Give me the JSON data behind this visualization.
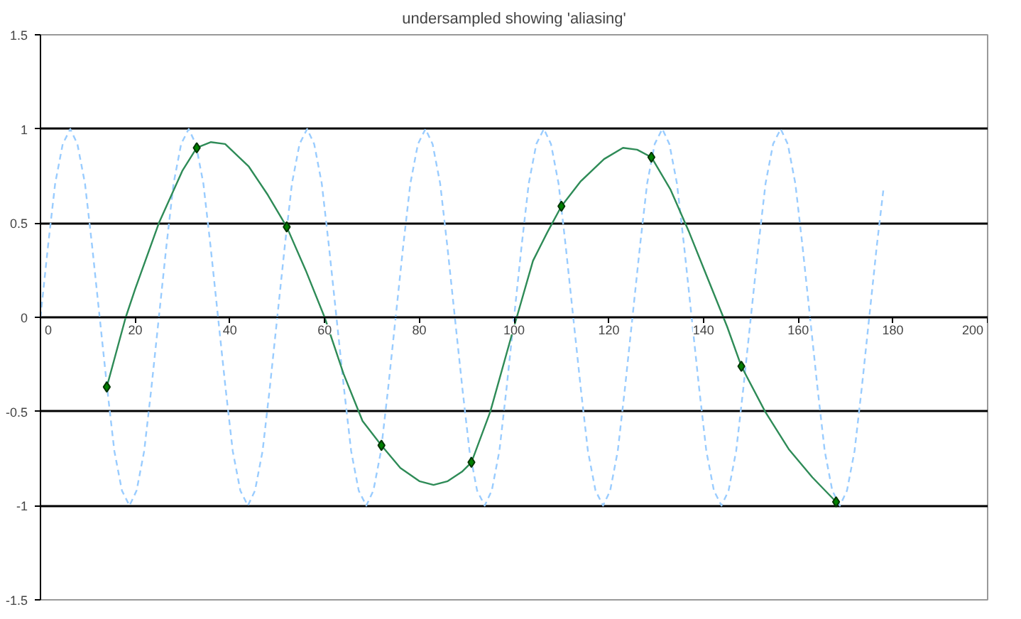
{
  "chart_data": {
    "type": "line",
    "title": "undersampled showing 'aliasing'",
    "xlim": [
      0,
      200
    ],
    "xticks": [
      0,
      20,
      40,
      60,
      80,
      100,
      120,
      140,
      160,
      180,
      200
    ],
    "ylim": [
      -1.5,
      1.5
    ],
    "yticks": [
      -1.5,
      -1,
      -0.5,
      0,
      0.5,
      1,
      1.5
    ],
    "grid": "y",
    "series": [
      {
        "color": "#99ccff",
        "line_style": "dashed",
        "marker": "none",
        "x": [
          0,
          1.6,
          3.1,
          4.7,
          6.3,
          7.8,
          9.4,
          10.9,
          12.5,
          14.1,
          15.6,
          17.2,
          18.8,
          20.3,
          21.9,
          23.4,
          25,
          26.6,
          28.1,
          29.7,
          31.3,
          32.8,
          34.4,
          35.9,
          37.5,
          39.1,
          40.6,
          42.2,
          43.8,
          45.3,
          46.9,
          48.4,
          50,
          51.6,
          53.1,
          54.7,
          56.3,
          57.8,
          59.4,
          60.9,
          62.5,
          64.1,
          65.6,
          67.2,
          68.8,
          70.3,
          71.9,
          73.4,
          75,
          76.6,
          78.1,
          79.7,
          81.3,
          82.8,
          84.4,
          85.9,
          87.5,
          89.1,
          90.6,
          92.2,
          93.8,
          95.3,
          96.9,
          98.4,
          100,
          101.6,
          103.1,
          104.7,
          106.3,
          107.8,
          109.4,
          110.9,
          112.5,
          114.1,
          115.6,
          117.2,
          118.8,
          120.3,
          121.9,
          123.4,
          125,
          126.6,
          128.1,
          129.7,
          131.3,
          132.8,
          134.4,
          135.9,
          137.5,
          139.1,
          140.6,
          142.2,
          143.8,
          145.3,
          146.9,
          148.4,
          150,
          151.6,
          153.1,
          154.7,
          156.3,
          157.8,
          159.4,
          160.9,
          162.5,
          164.1,
          165.6,
          167.2,
          168.8,
          170.3,
          171.9,
          173.4,
          175,
          176.6,
          178
        ],
        "values": [
          0,
          0.38,
          0.71,
          0.92,
          1,
          0.92,
          0.71,
          0.38,
          0,
          -0.38,
          -0.71,
          -0.92,
          -1,
          -0.92,
          -0.71,
          -0.38,
          0,
          0.38,
          0.71,
          0.92,
          1,
          0.92,
          0.71,
          0.38,
          0,
          -0.38,
          -0.71,
          -0.92,
          -1,
          -0.92,
          -0.71,
          -0.38,
          0,
          0.38,
          0.71,
          0.92,
          1,
          0.92,
          0.71,
          0.38,
          0,
          -0.38,
          -0.71,
          -0.92,
          -1,
          -0.92,
          -0.71,
          -0.38,
          0,
          0.38,
          0.71,
          0.92,
          1,
          0.92,
          0.71,
          0.38,
          0,
          -0.38,
          -0.71,
          -0.92,
          -1,
          -0.92,
          -0.71,
          -0.38,
          0,
          0.38,
          0.71,
          0.92,
          1,
          0.92,
          0.71,
          0.38,
          0,
          -0.38,
          -0.71,
          -0.92,
          -1,
          -0.92,
          -0.71,
          -0.38,
          0,
          0.38,
          0.71,
          0.92,
          1,
          0.92,
          0.71,
          0.38,
          0,
          -0.38,
          -0.71,
          -0.92,
          -1,
          -0.92,
          -0.71,
          -0.38,
          0,
          0.38,
          0.71,
          0.92,
          1,
          0.92,
          0.71,
          0.38,
          0,
          -0.38,
          -0.71,
          -0.92,
          -1,
          -0.92,
          -0.71,
          -0.38,
          0,
          0.38,
          0.68
        ]
      },
      {
        "color": "#2e8b57",
        "line_style": "solid",
        "x": [
          14,
          18,
          20,
          25,
          30,
          33,
          36,
          39,
          44,
          48,
          52,
          56,
          60,
          64,
          68,
          72,
          76,
          80,
          83,
          86,
          89,
          91,
          95,
          100,
          104,
          107,
          110,
          114,
          119,
          123,
          126,
          129,
          133,
          137,
          141,
          145,
          148,
          153,
          158,
          163,
          168
        ],
        "values": [
          -0.37,
          0,
          0.15,
          0.5,
          0.78,
          0.9,
          0.93,
          0.92,
          0.8,
          0.65,
          0.48,
          0.25,
          0,
          -0.3,
          -0.55,
          -0.68,
          -0.8,
          -0.87,
          -0.89,
          -0.87,
          -0.82,
          -0.77,
          -0.5,
          -0.05,
          0.3,
          0.45,
          0.59,
          0.72,
          0.84,
          0.9,
          0.89,
          0.85,
          0.68,
          0.45,
          0.2,
          -0.05,
          -0.26,
          -0.5,
          -0.7,
          -0.85,
          -0.98
        ]
      },
      {
        "type": "scatter",
        "color": "#008000",
        "marker": "diamond",
        "x": [
          14,
          33,
          52,
          72,
          91,
          110,
          129,
          148,
          168
        ],
        "values": [
          -0.37,
          0.9,
          0.48,
          -0.68,
          -0.77,
          0.59,
          0.85,
          -0.26,
          -0.98
        ]
      }
    ]
  }
}
